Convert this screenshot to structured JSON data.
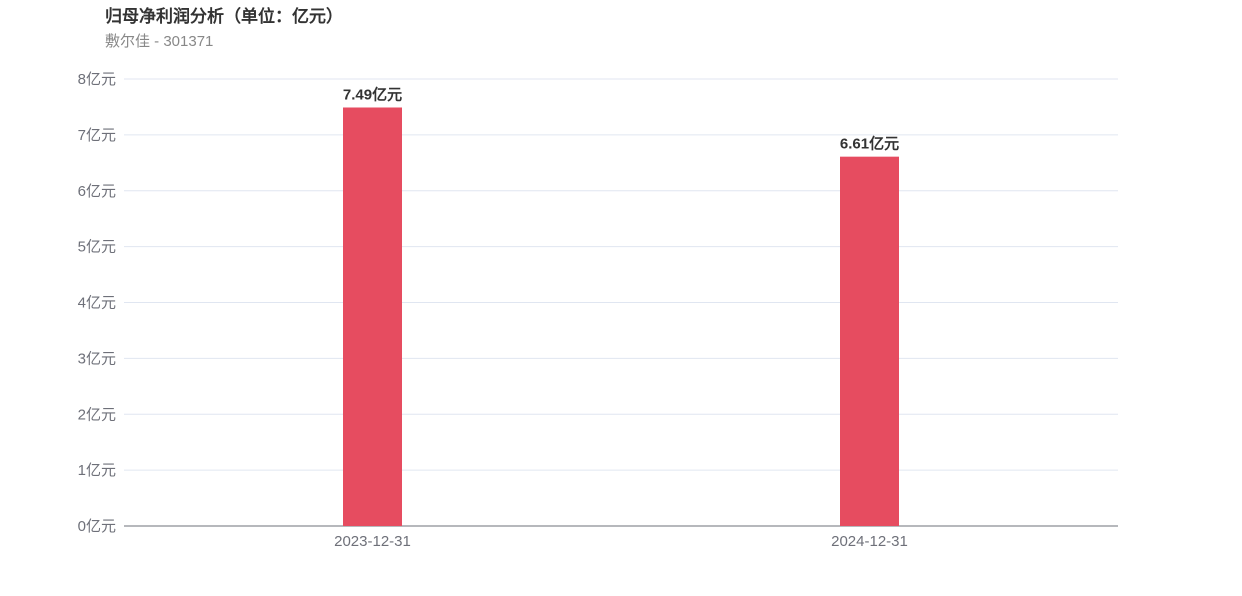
{
  "chart_data": {
    "type": "bar",
    "title": "归母净利润分析（单位：亿元）",
    "subtitle": "敷尔佳 - 301371",
    "categories": [
      "2023-12-31",
      "2024-12-31"
    ],
    "values": [
      7.49,
      6.61
    ],
    "data_labels": [
      "7.49亿元",
      "6.61亿元"
    ],
    "y_ticks": [
      "0亿元",
      "1亿元",
      "2亿元",
      "3亿元",
      "4亿元",
      "5亿元",
      "6亿元",
      "7亿元",
      "8亿元"
    ],
    "ylim": [
      0,
      8
    ],
    "grid": true,
    "bar_color": "#e64c60",
    "xlabel": "",
    "ylabel": ""
  }
}
